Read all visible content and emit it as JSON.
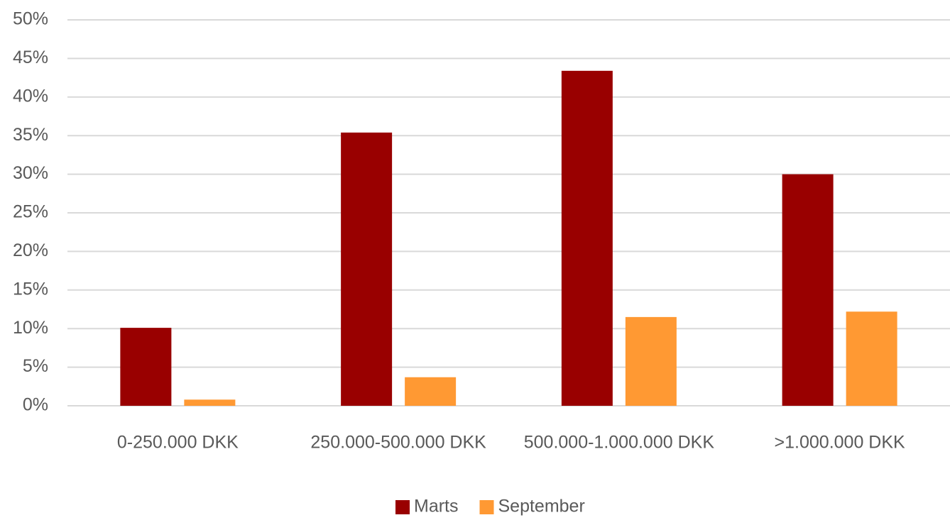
{
  "chart_data": {
    "type": "bar",
    "categories": [
      "0-250.000 DKK",
      "250.000-500.000 DKK",
      "500.000-1.000.000 DKK",
      ">1.000.000 DKK"
    ],
    "series": [
      {
        "name": "Marts",
        "color": "#990000",
        "values": [
          10.1,
          35.4,
          43.4,
          30.0
        ]
      },
      {
        "name": "September",
        "color": "#ff9933",
        "values": [
          0.8,
          3.7,
          11.5,
          12.2
        ]
      }
    ],
    "ylim": [
      0,
      50
    ],
    "yticks": [
      {
        "value": 0,
        "label": "0%"
      },
      {
        "value": 5,
        "label": "5%"
      },
      {
        "value": 10,
        "label": "10%"
      },
      {
        "value": 15,
        "label": "15%"
      },
      {
        "value": 20,
        "label": "20%"
      },
      {
        "value": 25,
        "label": "25%"
      },
      {
        "value": 30,
        "label": "30%"
      },
      {
        "value": 35,
        "label": "35%"
      },
      {
        "value": 40,
        "label": "40%"
      },
      {
        "value": 45,
        "label": "45%"
      },
      {
        "value": 50,
        "label": "50%"
      }
    ],
    "grid": true,
    "legend": "bottom"
  }
}
